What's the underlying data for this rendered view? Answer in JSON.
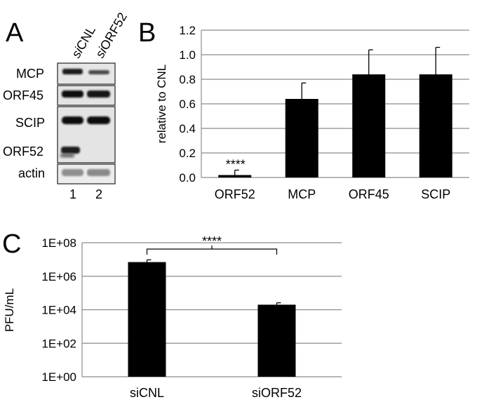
{
  "panels": {
    "A": {
      "letter": "A",
      "lane_headers": [
        {
          "text": "siCNL",
          "italic_prefix": "si",
          "rest": "CNL"
        },
        {
          "text": "siORF52",
          "italic_prefix": "si",
          "rest": "ORF52"
        }
      ],
      "row_labels": [
        "MCP",
        "ORF45",
        "SCIP",
        "ORF52",
        "actin"
      ],
      "lane_numbers": [
        "1",
        "2"
      ]
    },
    "B": {
      "letter": "B",
      "significance": "****"
    },
    "C": {
      "letter": "C",
      "significance": "****"
    }
  },
  "chart_data": [
    {
      "type": "bar",
      "panel": "B",
      "title": "",
      "xlabel": "",
      "ylabel": "relative to CNL",
      "categories": [
        "ORF52",
        "MCP",
        "ORF45",
        "SCIP"
      ],
      "values": [
        0.02,
        0.64,
        0.84,
        0.84
      ],
      "error_plus": [
        0.04,
        0.13,
        0.2,
        0.22
      ],
      "ylim": [
        0,
        1.2
      ],
      "yticks": [
        "0.0",
        "0.2",
        "0.4",
        "0.6",
        "0.8",
        "1.0",
        "1.2"
      ],
      "grid": true,
      "bar_color": "#000000",
      "annotations": [
        {
          "category": "ORF52",
          "text": "****"
        }
      ]
    },
    {
      "type": "bar",
      "panel": "C",
      "title": "",
      "xlabel": "",
      "ylabel": "PFU/mL",
      "yscale": "log",
      "categories": [
        "siCNL",
        "siORF52"
      ],
      "values": [
        7000000,
        20000
      ],
      "error_plus": [
        2500000,
        6000
      ],
      "ylim": [
        1,
        100000000
      ],
      "yticks": [
        "1E+00",
        "1E+02",
        "1E+04",
        "1E+06",
        "1E+08"
      ],
      "grid": true,
      "bar_color": "#000000",
      "annotations": [
        {
          "type": "bracket",
          "between": [
            "siCNL",
            "siORF52"
          ],
          "text": "****"
        }
      ]
    }
  ]
}
